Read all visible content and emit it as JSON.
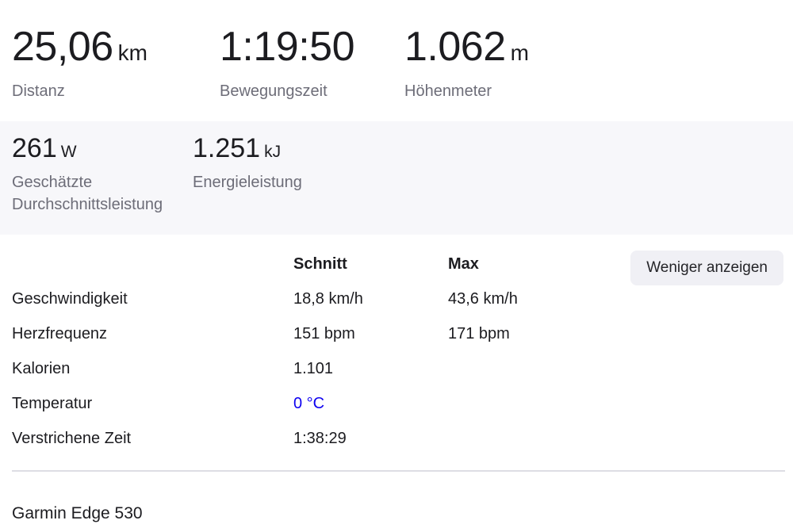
{
  "primary_stats": [
    {
      "value": "25,06",
      "unit": "km",
      "label": "Distanz"
    },
    {
      "value": "1:19:50",
      "unit": "",
      "label": "Bewegungszeit"
    },
    {
      "value": "1.062",
      "unit": "m",
      "label": "Höhenmeter"
    }
  ],
  "power_stats": [
    {
      "value": "261",
      "unit": "W",
      "label": "Geschätzte Durchschnittsleistung"
    },
    {
      "value": "1.251",
      "unit": "kJ",
      "label": "Energieleistung"
    }
  ],
  "details_table": {
    "columns": {
      "avg": "Schnitt",
      "max": "Max"
    },
    "toggle_button_label": "Weniger anzeigen",
    "rows": [
      {
        "label": "Geschwindigkeit",
        "avg": "18,8 km/h",
        "max": "43,6 km/h"
      },
      {
        "label": "Herzfrequenz",
        "avg": "151 bpm",
        "max": "171 bpm"
      },
      {
        "label": "Kalorien",
        "avg": "1.101",
        "max": ""
      },
      {
        "label": "Temperatur",
        "avg": "0 °C",
        "max": ""
      },
      {
        "label": "Verstrichene Zeit",
        "avg": "1:38:29",
        "max": ""
      }
    ]
  },
  "footer": {
    "device_name": "Garmin Edge 530"
  },
  "colors": {
    "text_dark": "#1c1c20",
    "text_gray": "#6d6d78",
    "band_background": "#f7f7fa",
    "button_background": "#f0f0f5",
    "link_blue": "#0d00f0",
    "divider": "#dddde4"
  }
}
